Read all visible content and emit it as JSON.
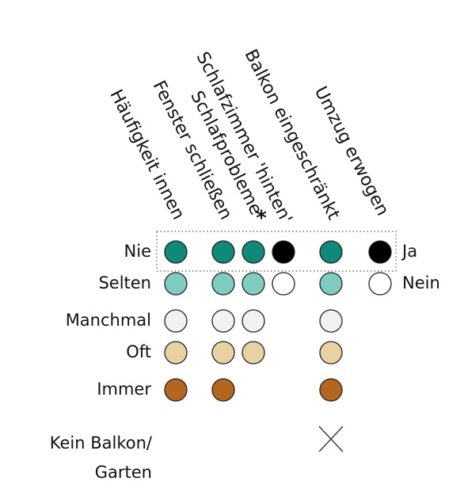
{
  "rows": [
    "Nie",
    "Selten",
    "Manchmal",
    "Oft",
    "Immer"
  ],
  "extra_row": [
    "Kein Balkon/",
    "Garten"
  ],
  "binary_labels": [
    "Ja",
    "Nein"
  ],
  "scale_colors": [
    "#0f8a78",
    "#7ecdc0",
    "#f2f2f2",
    "#e9d2a2",
    "#b4661f"
  ],
  "binary_colors": [
    "#000000",
    "#ffffff"
  ],
  "columns": [
    {
      "label": "Häufigkeit innen",
      "kind": "scale",
      "levels": 5
    },
    {
      "label": "Fenster schließen",
      "kind": "scale",
      "levels": 5
    },
    {
      "label": "Schlafprobleme",
      "kind": "scale",
      "levels": 4,
      "marker": "*"
    },
    {
      "label": "Schlafzimmer 'hinten'",
      "kind": "binary"
    },
    {
      "label": "Balkon eingeschränkt",
      "kind": "scale",
      "levels": 5,
      "none_marker": true
    },
    {
      "label": "Umzug erwogen",
      "kind": "binary"
    }
  ]
}
